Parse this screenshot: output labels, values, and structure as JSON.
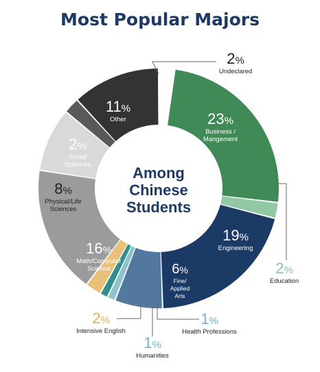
{
  "chart_data": {
    "type": "pie",
    "title": "Most Popular Majors",
    "center_label": [
      "Among",
      "Chinese",
      "Students"
    ],
    "unit": "%",
    "slices": [
      {
        "name": "Undeclared",
        "value": 2,
        "color": "#ffffff",
        "label": [
          "Undeclared"
        ]
      },
      {
        "name": "Business / Mangement",
        "value": 23,
        "color": "#3f8a57",
        "label": [
          "Business /",
          "Mangement"
        ]
      },
      {
        "name": "Education",
        "value": 2,
        "color": "#93c8a4",
        "label": [
          "Education"
        ]
      },
      {
        "name": "Engineering",
        "value": 19,
        "color": "#1b3a66",
        "label": [
          "Engineering"
        ]
      },
      {
        "name": "Fine/ Applied Arts",
        "value": 6,
        "color": "#52789f",
        "label": [
          "Fine/",
          "Applied",
          "Arts"
        ]
      },
      {
        "name": "Health Professions",
        "value": 1,
        "color": "#8ec2cf",
        "label": [
          "Health Professions"
        ]
      },
      {
        "name": "Humanities",
        "value": 1,
        "color": "#2e8f8c",
        "label": [
          "Humanities"
        ]
      },
      {
        "name": "Intensive English",
        "value": 2,
        "color": "#e9c07a",
        "label": [
          "Intensive English"
        ]
      },
      {
        "name": "Math/Computer Science",
        "value": 16,
        "color": "#9b9b9b",
        "label": [
          "Math/Computer",
          "Science"
        ]
      },
      {
        "name": "Physical/Life Sciences",
        "value": 8,
        "color": "#d9d9d9",
        "label": [
          "Physical/Life",
          "Sciences"
        ]
      },
      {
        "name": "Social Sciences",
        "value": 2,
        "color": "#595959",
        "label": [
          "Social",
          "Sciences"
        ]
      },
      {
        "name": "Other",
        "value": 11,
        "color": "#333333",
        "label": [
          "Other"
        ]
      }
    ],
    "colors": {
      "title": "#1d3a64",
      "pct_inside_light": "#ffffff",
      "pct_inside_dark": "#222222",
      "pct_undeclared": "#222222",
      "pct_education": "#8fc3a0",
      "pct_intensive_english": "#e3ad4f",
      "pct_health_professions": "#6fb4c4",
      "pct_humanities": "#6fb4c4",
      "center_text": "#1d3a64",
      "leader": "#666666"
    }
  }
}
